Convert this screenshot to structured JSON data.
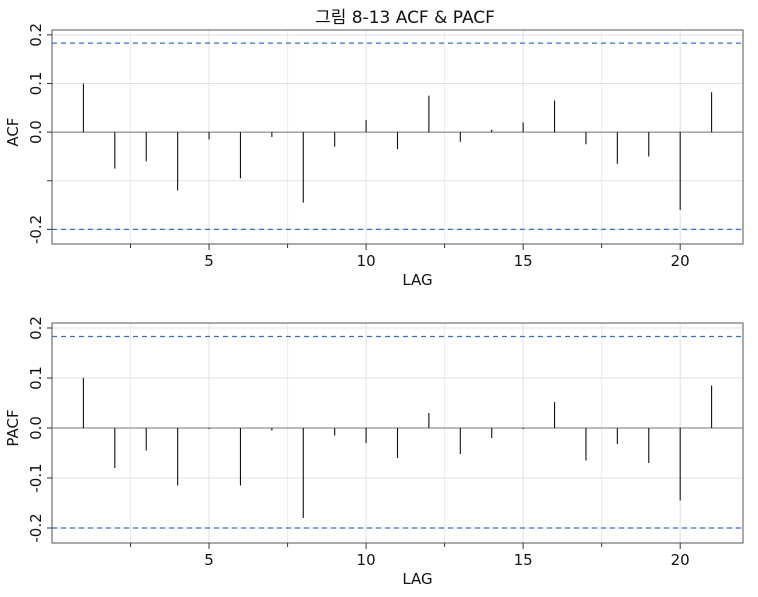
{
  "title": "그림 8-13 ACF & PACF",
  "chart_data": [
    {
      "type": "bar",
      "panel": "ACF",
      "xlabel": "LAG",
      "ylabel": "ACF",
      "xlim": [
        0,
        22
      ],
      "ylim": [
        -0.23,
        0.21
      ],
      "xticks": [
        "5",
        "10",
        "15",
        "20"
      ],
      "yticks": [
        "-0.2",
        "0.0",
        "0.1",
        "0.2"
      ],
      "grid": true,
      "confidence_bounds": [
        0.183,
        -0.2
      ],
      "lags": [
        1,
        2,
        3,
        4,
        5,
        6,
        7,
        8,
        9,
        10,
        11,
        12,
        13,
        14,
        15,
        16,
        17,
        18,
        19,
        20,
        21
      ],
      "values": [
        0.1,
        -0.075,
        -0.06,
        -0.12,
        -0.015,
        -0.095,
        -0.01,
        -0.145,
        -0.03,
        0.025,
        -0.035,
        0.075,
        -0.02,
        0.005,
        0.02,
        0.065,
        -0.025,
        -0.065,
        -0.05,
        -0.16,
        0.082
      ]
    },
    {
      "type": "bar",
      "panel": "PACF",
      "xlabel": "LAG",
      "ylabel": "PACF",
      "xlim": [
        0,
        22
      ],
      "ylim": [
        -0.23,
        0.21
      ],
      "xticks": [
        "5",
        "10",
        "15",
        "20"
      ],
      "yticks": [
        "-0.2",
        "-0.1",
        "0.0",
        "0.1",
        "0.2"
      ],
      "grid": true,
      "confidence_bounds": [
        0.183,
        -0.2
      ],
      "lags": [
        1,
        2,
        3,
        4,
        5,
        6,
        7,
        8,
        9,
        10,
        11,
        12,
        13,
        14,
        15,
        16,
        17,
        18,
        19,
        20,
        21
      ],
      "values": [
        0.1,
        -0.08,
        -0.045,
        -0.115,
        -0.002,
        -0.115,
        -0.005,
        -0.18,
        -0.015,
        -0.03,
        -0.06,
        0.03,
        -0.052,
        -0.02,
        -0.002,
        0.052,
        -0.065,
        -0.032,
        -0.07,
        -0.145,
        0.085
      ]
    }
  ]
}
